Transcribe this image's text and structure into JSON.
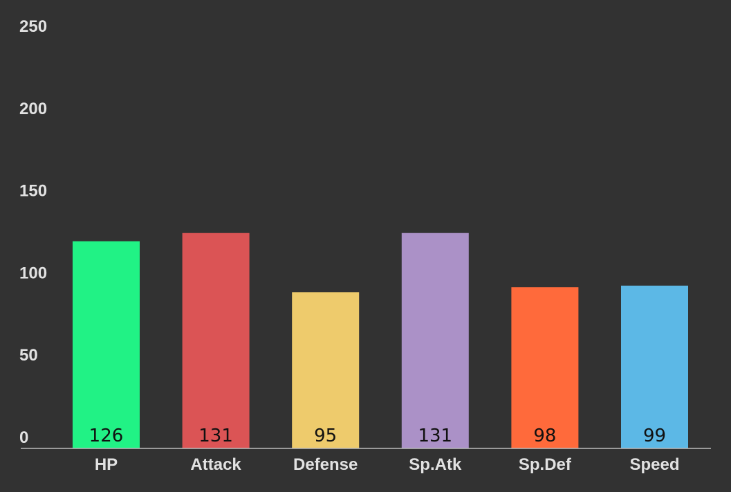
{
  "chart_data": {
    "type": "bar",
    "categories": [
      "HP",
      "Attack",
      "Defense",
      "Sp.Atk",
      "Sp.Def",
      "Speed"
    ],
    "values": [
      126,
      131,
      95,
      131,
      98,
      99
    ],
    "colors": [
      "#21f285",
      "#db5455",
      "#eecb6c",
      "#ab91c7",
      "#ff6a3b",
      "#5cb8e6"
    ],
    "ylim": [
      0,
      250
    ],
    "yticks": [
      0,
      50,
      100,
      150,
      200,
      250
    ],
    "grid": false,
    "title": "",
    "xlabel": "",
    "ylabel": "",
    "background": "#323232",
    "axis_color": "#bdbdbd"
  }
}
